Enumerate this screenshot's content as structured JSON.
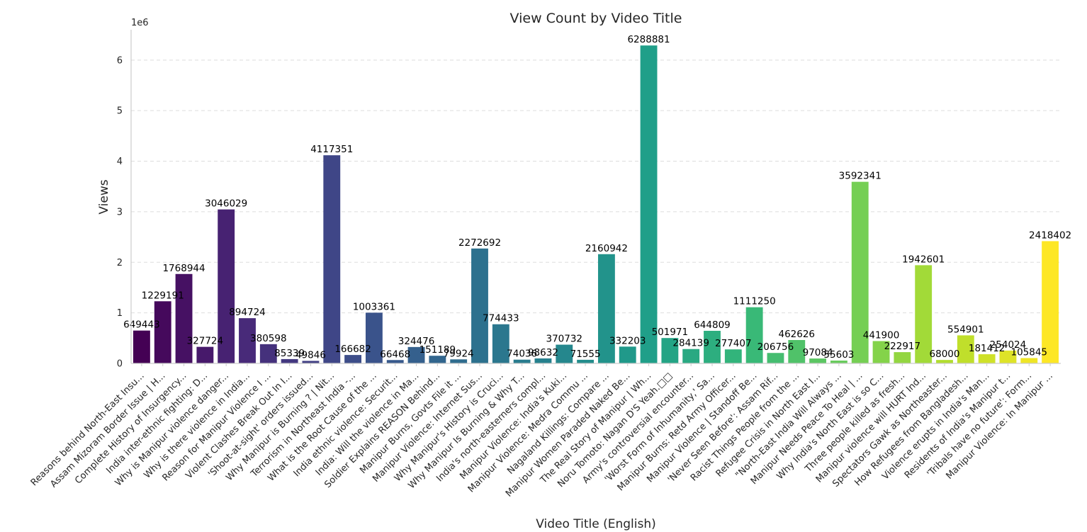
{
  "chart_data": {
    "type": "bar",
    "title": "View Count by Video Title",
    "xlabel": "Video Title (English)",
    "ylabel": "Views",
    "scale_label": "1e6",
    "ylim": [
      0,
      6.6
    ],
    "yticks": [
      0,
      1,
      2,
      3,
      4,
      5,
      6
    ],
    "grid": "y-dashed",
    "palette": "viridis",
    "categories": [
      "Reasons behind North-East Insu...",
      "Assam Mizoram Border Issue | H...",
      "Complete History of Insurgency...",
      "India inter-ethnic fighting: D...",
      "Why is Manipur violence danger...",
      "Why is there violence in India...",
      "Reason for Manipur Violence I ...",
      "Violent Clashes Break Out In I...",
      "'Shoot-at-sight' orders issued...",
      "Why Manipur is Burning ? | Nit...",
      "Terrorism in Northeast India -...",
      "What is the Root Cause of the ...",
      "India ethnic violence: Securit...",
      "India: Will the violence in Ma...",
      "Soldier Explains REASON Behind...",
      "Manipur Burns, Govts File it ...",
      "Manipur Violence: Internet Sus...",
      "Why Manipur's History is Cruci...",
      "Why Manipur Is Burning & Why T...",
      "India's north-easterners compl...",
      "Manipur Violence: India's Kuki...",
      "Manipur Violence: Medra Commu ...",
      "Nagaland Killings: Compare ...",
      "Manipur Women Paraded Naked Be...",
      "The Real Story of Manipur | Wh...",
      "Noru Tomoto: Nagan D'S Yeah.□□",
      "Army's controversial encounter...",
      "'Worst Form of Inhumanity,' Sa...",
      "Manipur Burns: Retd Army Officer...",
      "Manipur Violence | Standoff Be...",
      "'Never Seen Before': Assam Rif...",
      "Racist Things People from the ...",
      "Refugee Crisis in North East I...",
      "\"North-East India Will Always ...",
      "Manipur Needs Peace To Heal | ...",
      "Why India's North East is so C...",
      "Three people killed as fresh...",
      "Manipur violence will HURT Ind...",
      "Spectators Gawk as Northeaster...",
      "How Refugees from Bangladesh...",
      "Violence erupts in India's Man...",
      "Residents of India's Manipur t...",
      "'Tribals have no future': Form...",
      "Manipur Violence: In Manipur ..."
    ],
    "values": [
      649443,
      1229191,
      1768944,
      327724,
      3046029,
      894724,
      380598,
      85339,
      49846,
      4117351,
      166682,
      1003361,
      66468,
      324476,
      151189,
      79924,
      2272692,
      774433,
      74036,
      98632,
      370732,
      71555,
      2160942,
      332203,
      6288881,
      501971,
      284139,
      644809,
      277407,
      1111250,
      206756,
      462626,
      97084,
      55603,
      3592341,
      441900,
      222917,
      1942601,
      68000,
      554901,
      181412,
      254024,
      105845,
      2418402
    ],
    "data_labels": [
      "649443",
      "1229191",
      "1768944",
      "327724",
      "3046029",
      "894724",
      "380598",
      "85339",
      "49846",
      "4117351",
      "166682",
      "1003361",
      "66468",
      "324476",
      "151189",
      "79924",
      "2272692",
      "774433",
      "74036",
      "98632",
      "370732",
      "71555",
      "2160942",
      "332203",
      "6288881",
      "501971",
      "284139",
      "644809",
      "277407",
      "1111250",
      "206756",
      "462626",
      "97084",
      "55603",
      "3592341",
      "441900",
      "222917",
      "1942601",
      "68000",
      "554901",
      "181412",
      "254024",
      "105845",
      "2418402"
    ]
  }
}
